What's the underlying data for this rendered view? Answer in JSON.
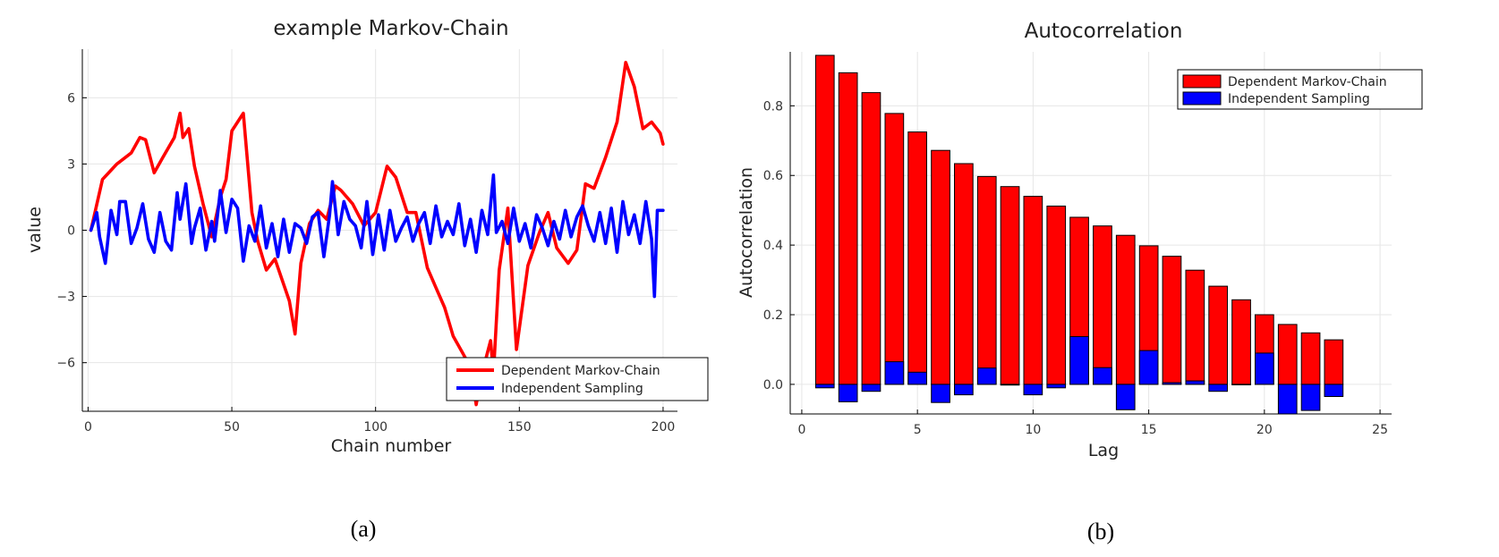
{
  "chart_data": [
    {
      "type": "line",
      "title": "example Markov-Chain",
      "xlabel": "Chain number",
      "ylabel": "value",
      "xlim": [
        -2,
        205
      ],
      "ylim": [
        -8.2,
        8.2
      ],
      "xticks": [
        0,
        50,
        100,
        150,
        200
      ],
      "xtick_labels": [
        "0",
        "50",
        "100",
        "150",
        "200"
      ],
      "yticks": [
        -6,
        -3,
        0,
        3,
        6
      ],
      "ytick_labels": [
        "−6",
        "−3",
        "0",
        "3",
        "6"
      ],
      "grid": true,
      "legend_position": "bottom-right",
      "caption": "(a)",
      "series": [
        {
          "name": "Dependent Markov-Chain",
          "color": "#ff0000",
          "x": [
            1,
            5,
            10,
            15,
            18,
            20,
            23,
            26,
            30,
            32,
            33,
            35,
            37,
            40,
            43,
            46,
            48,
            50,
            52,
            54,
            55,
            57,
            59,
            62,
            65,
            70,
            72,
            74,
            77,
            80,
            83,
            86,
            88,
            92,
            96,
            100,
            104,
            107,
            111,
            114,
            118,
            121,
            124,
            127,
            130,
            133,
            135,
            137,
            140,
            141,
            143,
            146,
            149,
            153,
            157,
            160,
            163,
            167,
            170,
            173,
            176,
            180,
            184,
            187,
            190,
            193,
            196,
            199,
            200
          ],
          "y": [
            0,
            2.3,
            3.0,
            3.5,
            4.2,
            4.1,
            2.6,
            3.3,
            4.2,
            5.3,
            4.2,
            4.6,
            2.9,
            1.2,
            -0.3,
            1.5,
            2.3,
            4.5,
            4.9,
            5.3,
            3.8,
            0.8,
            -0.5,
            -1.8,
            -1.3,
            -3.2,
            -4.7,
            -1.5,
            0.3,
            0.9,
            0.5,
            2.0,
            1.8,
            1.2,
            0.2,
            0.8,
            2.9,
            2.4,
            0.8,
            0.8,
            -1.7,
            -2.6,
            -3.5,
            -4.8,
            -5.5,
            -6.2,
            -7.9,
            -6.5,
            -5.0,
            -6.5,
            -1.8,
            1.0,
            -5.4,
            -1.6,
            -0.1,
            0.8,
            -0.8,
            -1.5,
            -0.9,
            2.1,
            1.9,
            3.3,
            4.9,
            7.6,
            6.5,
            4.6,
            4.9,
            4.4,
            3.9
          ]
        },
        {
          "name": "Independent Sampling",
          "color": "#0000ff",
          "x": [
            1,
            3,
            4,
            6,
            8,
            10,
            11,
            13,
            15,
            17,
            19,
            21,
            23,
            25,
            27,
            29,
            31,
            32,
            34,
            36,
            37,
            39,
            41,
            43,
            44,
            46,
            48,
            50,
            52,
            54,
            56,
            58,
            60,
            62,
            64,
            66,
            68,
            70,
            72,
            74,
            76,
            78,
            80,
            82,
            84,
            85,
            87,
            89,
            91,
            93,
            95,
            97,
            99,
            101,
            103,
            105,
            107,
            109,
            111,
            113,
            115,
            117,
            119,
            121,
            123,
            125,
            127,
            129,
            131,
            133,
            135,
            137,
            139,
            141,
            142,
            144,
            146,
            148,
            150,
            152,
            154,
            156,
            158,
            160,
            162,
            164,
            166,
            168,
            170,
            172,
            174,
            176,
            178,
            180,
            182,
            184,
            186,
            188,
            190,
            192,
            194,
            196,
            197,
            198,
            199,
            200
          ],
          "y": [
            0,
            0.8,
            -0.3,
            -1.5,
            0.9,
            -0.2,
            1.3,
            1.3,
            -0.6,
            0.1,
            1.2,
            -0.4,
            -1.0,
            0.8,
            -0.5,
            -0.9,
            1.7,
            0.5,
            2.1,
            -0.6,
            0.1,
            1.0,
            -0.9,
            0.4,
            -0.5,
            1.8,
            -0.1,
            1.4,
            1.0,
            -1.4,
            0.2,
            -0.5,
            1.1,
            -0.8,
            0.3,
            -1.2,
            0.5,
            -1.0,
            0.3,
            0.1,
            -0.6,
            0.6,
            0.8,
            -1.2,
            0.7,
            2.2,
            -0.2,
            1.3,
            0.5,
            0.2,
            -0.8,
            1.3,
            -1.1,
            0.7,
            -0.9,
            0.9,
            -0.5,
            0.1,
            0.6,
            -0.5,
            0.3,
            0.8,
            -0.6,
            1.1,
            -0.3,
            0.4,
            -0.2,
            1.2,
            -0.7,
            0.5,
            -1.0,
            0.9,
            -0.2,
            2.5,
            -0.1,
            0.4,
            -0.6,
            1.0,
            -0.5,
            0.3,
            -0.8,
            0.7,
            0.1,
            -0.7,
            0.4,
            -0.4,
            0.9,
            -0.3,
            0.6,
            1.1,
            0.2,
            -0.5,
            0.8,
            -0.6,
            1.0,
            -1.0,
            1.3,
            -0.2,
            0.7,
            -0.6,
            1.3,
            -0.4,
            -3.0,
            0.9,
            0.9,
            0.9
          ]
        }
      ]
    },
    {
      "type": "bar",
      "title": "Autocorrelation",
      "xlabel": "Lag",
      "ylabel": "Autocorrelation",
      "xlim": [
        -0.5,
        25.5
      ],
      "ylim": [
        -0.085,
        0.955
      ],
      "xticks": [
        0,
        5,
        10,
        15,
        20,
        25
      ],
      "xtick_labels": [
        "0",
        "5",
        "10",
        "15",
        "20",
        "25"
      ],
      "yticks": [
        0,
        0.2,
        0.4,
        0.6,
        0.8
      ],
      "ytick_labels": [
        "0.0",
        "0.2",
        "0.4",
        "0.6",
        "0.8"
      ],
      "grid": true,
      "legend_position": "top-right",
      "caption": "(b)",
      "categories": [
        1,
        2,
        3,
        4,
        5,
        6,
        7,
        8,
        9,
        10,
        11,
        12,
        13,
        14,
        15,
        16,
        17,
        18,
        19,
        20,
        21,
        22,
        23
      ],
      "series": [
        {
          "name": "Dependent Markov-Chain",
          "color": "#ff0000",
          "values": [
            0.945,
            0.895,
            0.838,
            0.778,
            0.725,
            0.672,
            0.634,
            0.597,
            0.568,
            0.54,
            0.512,
            0.48,
            0.455,
            0.428,
            0.398,
            0.368,
            0.328,
            0.282,
            0.243,
            0.2,
            0.172,
            0.148,
            0.128
          ]
        },
        {
          "name": "Independent Sampling",
          "color": "#0000ff",
          "values": [
            -0.01,
            -0.05,
            -0.02,
            0.065,
            0.035,
            -0.052,
            -0.03,
            0.047,
            -0.002,
            -0.03,
            -0.01,
            0.137,
            0.048,
            -0.073,
            0.097,
            0.005,
            0.01,
            -0.02,
            0.0,
            0.09,
            -0.085,
            -0.075,
            -0.035
          ]
        }
      ]
    }
  ]
}
